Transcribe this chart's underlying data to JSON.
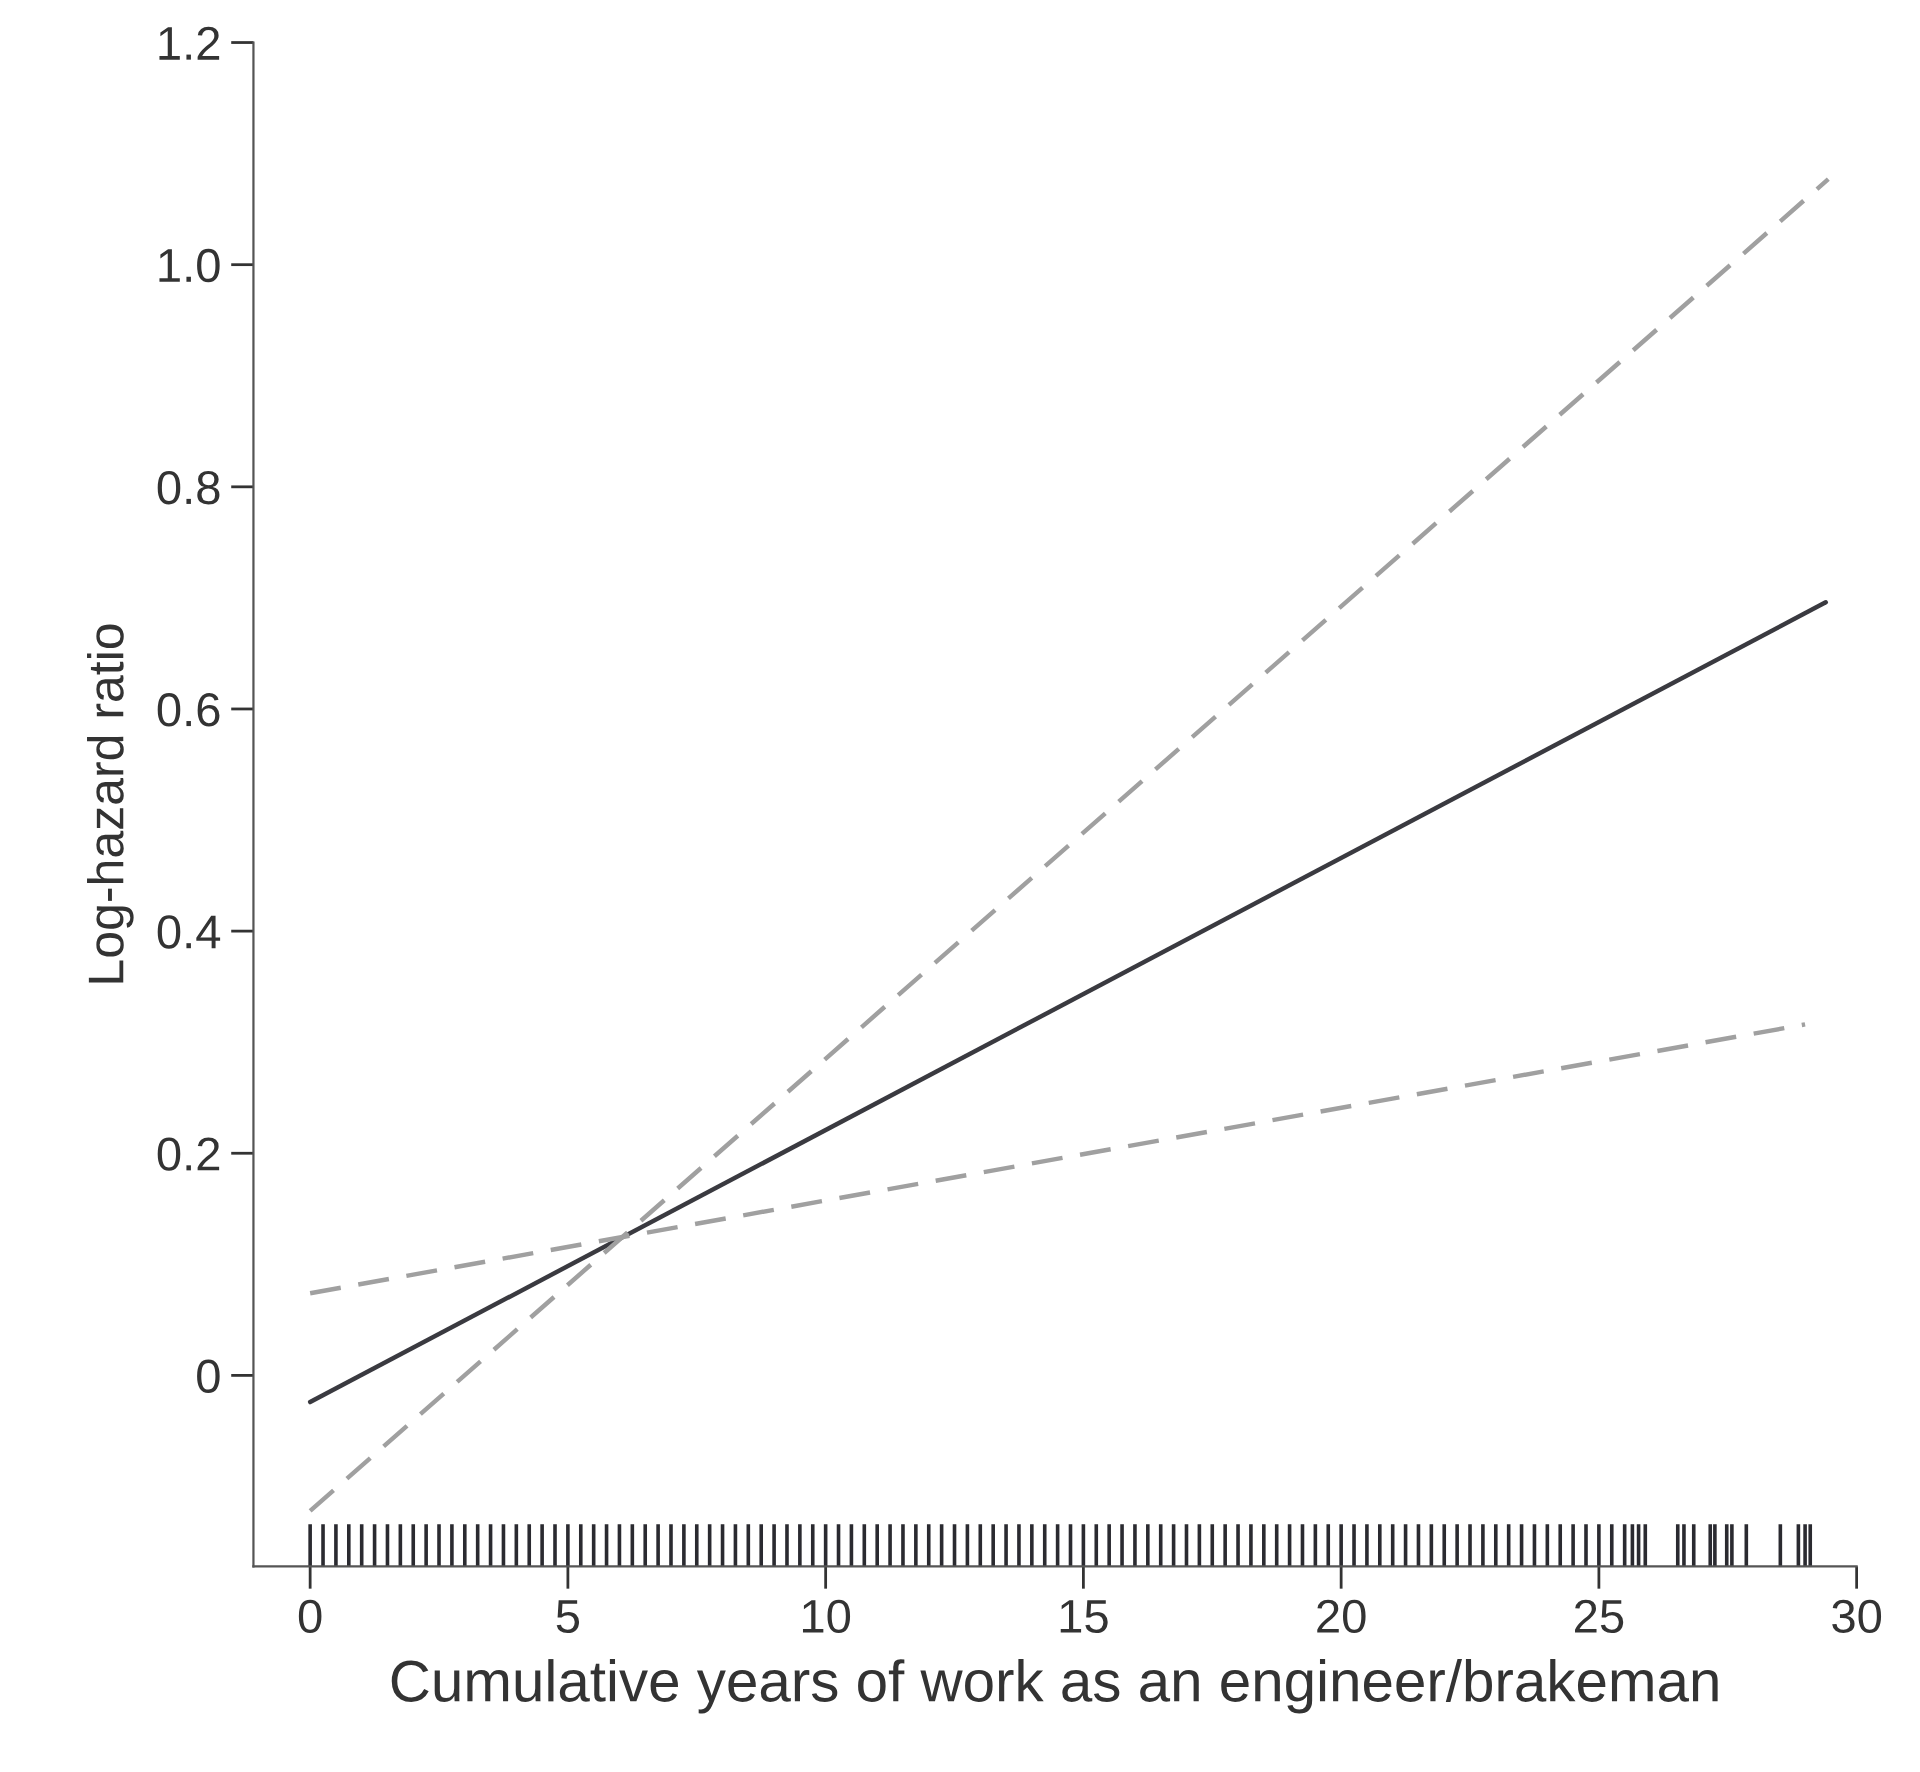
{
  "chart_data": {
    "type": "line",
    "xlabel": "Cumulative years of work as an engineer/brakeman",
    "ylabel": "Log-hazard ratio",
    "xlim": [
      -1.1,
      30
    ],
    "xticks": [
      0,
      5,
      10,
      15,
      20,
      25,
      30
    ],
    "ylim": [
      -0.172,
      1.2
    ],
    "yticks": [
      {
        "value": 0,
        "label": "0"
      },
      0.2,
      0.4,
      0.6,
      0.8,
      {
        "value": 1.0,
        "label": "1.0"
      },
      1.2
    ],
    "grid": false,
    "legend": false,
    "marker": "none",
    "series": [
      {
        "type": "line",
        "line_style": "solid",
        "color": "#3a3a40",
        "x": [
          0,
          29.4
        ],
        "values": [
          -0.024,
          0.696
        ]
      },
      {
        "line_style": "dashed",
        "color": "#a0a0a0",
        "x": [
          0,
          29.45
        ],
        "values": [
          -0.122,
          1.077
        ]
      },
      {
        "line_style": "dashed",
        "color": "#a0a0a0",
        "x": [
          0,
          29.0
        ],
        "values": [
          0.074,
          0.316
        ]
      },
      {
        "type": "bar",
        "color": "#2a2a30",
        "base": [
          -0.172,
          -0.172,
          -0.172,
          -0.172,
          -0.172,
          -0.172,
          -0.172,
          -0.172,
          -0.172,
          -0.172,
          -0.172,
          -0.172,
          -0.172,
          -0.172,
          -0.172,
          -0.172,
          -0.172,
          -0.172,
          -0.172,
          -0.172,
          -0.172,
          -0.172,
          -0.172,
          -0.172,
          -0.172,
          -0.172,
          -0.172,
          -0.172,
          -0.172,
          -0.172,
          -0.172,
          -0.172,
          -0.172,
          -0.172,
          -0.172,
          -0.172,
          -0.172,
          -0.172,
          -0.172,
          -0.172,
          -0.172,
          -0.172,
          -0.172,
          -0.172,
          -0.172,
          -0.172,
          -0.172,
          -0.172,
          -0.172,
          -0.172,
          -0.172,
          -0.172,
          -0.172,
          -0.172,
          -0.172,
          -0.172,
          -0.172,
          -0.172,
          -0.172,
          -0.172,
          -0.172,
          -0.172,
          -0.172,
          -0.172,
          -0.172,
          -0.172,
          -0.172,
          -0.172,
          -0.172,
          -0.172,
          -0.172,
          -0.172,
          -0.172,
          -0.172,
          -0.172,
          -0.172,
          -0.172,
          -0.172,
          -0.172,
          -0.172,
          -0.172,
          -0.172,
          -0.172,
          -0.172,
          -0.172,
          -0.172,
          -0.172,
          -0.172,
          -0.172,
          -0.172,
          -0.172,
          -0.172,
          -0.172,
          -0.172,
          -0.172,
          -0.172,
          -0.172,
          -0.172,
          -0.172,
          -0.172,
          -0.172,
          -0.172,
          -0.172,
          -0.172,
          -0.172,
          -0.172,
          -0.172,
          -0.172,
          -0.172,
          -0.172,
          -0.172,
          -0.172,
          -0.172,
          -0.172,
          -0.172,
          -0.172,
          -0.172,
          -0.172
        ],
        "x": [
          0,
          0.25,
          0.5,
          0.75,
          1,
          1.25,
          1.5,
          1.75,
          2,
          2.25,
          2.5,
          2.75,
          3,
          3.25,
          3.5,
          3.75,
          4,
          4.25,
          4.5,
          4.75,
          5,
          5.25,
          5.5,
          5.75,
          6,
          6.25,
          6.5,
          6.75,
          7,
          7.25,
          7.5,
          7.75,
          8,
          8.25,
          8.5,
          8.75,
          9,
          9.25,
          9.5,
          9.75,
          10,
          10.25,
          10.5,
          10.75,
          11,
          11.25,
          11.5,
          11.75,
          12,
          12.25,
          12.5,
          12.75,
          13,
          13.25,
          13.5,
          13.75,
          14,
          14.25,
          14.5,
          14.75,
          15,
          15.25,
          15.5,
          15.75,
          16,
          16.25,
          16.5,
          16.75,
          17,
          17.25,
          17.5,
          17.75,
          18,
          18.25,
          18.5,
          18.75,
          19,
          19.25,
          19.5,
          19.75,
          20,
          20.25,
          20.5,
          20.75,
          21,
          21.25,
          21.5,
          21.75,
          22,
          22.25,
          22.5,
          22.75,
          23,
          23.25,
          23.5,
          23.75,
          24,
          24.25,
          24.5,
          24.75,
          25,
          25.25,
          25.5,
          25.65,
          25.77,
          25.9,
          26.53,
          26.65,
          26.84,
          27.16,
          27.25,
          27.48,
          27.58,
          27.86,
          28.52,
          28.87,
          29.0,
          29.1
        ],
        "values": [
          0.038,
          0.038,
          0.038,
          0.038,
          0.038,
          0.038,
          0.038,
          0.038,
          0.038,
          0.038,
          0.038,
          0.038,
          0.038,
          0.038,
          0.038,
          0.038,
          0.038,
          0.038,
          0.038,
          0.038,
          0.038,
          0.038,
          0.038,
          0.038,
          0.038,
          0.038,
          0.038,
          0.038,
          0.038,
          0.038,
          0.038,
          0.038,
          0.038,
          0.038,
          0.038,
          0.038,
          0.038,
          0.038,
          0.038,
          0.038,
          0.038,
          0.038,
          0.038,
          0.038,
          0.038,
          0.038,
          0.038,
          0.038,
          0.038,
          0.038,
          0.038,
          0.038,
          0.038,
          0.038,
          0.038,
          0.038,
          0.038,
          0.038,
          0.038,
          0.038,
          0.038,
          0.038,
          0.038,
          0.038,
          0.038,
          0.038,
          0.038,
          0.038,
          0.038,
          0.038,
          0.038,
          0.038,
          0.038,
          0.038,
          0.038,
          0.038,
          0.038,
          0.038,
          0.038,
          0.038,
          0.038,
          0.038,
          0.038,
          0.038,
          0.038,
          0.038,
          0.038,
          0.038,
          0.038,
          0.038,
          0.038,
          0.038,
          0.038,
          0.038,
          0.038,
          0.038,
          0.038,
          0.038,
          0.038,
          0.038,
          0.038,
          0.038,
          0.038,
          0.038,
          0.038,
          0.038,
          0.038,
          0.038,
          0.038,
          0.038,
          0.038,
          0.038,
          0.038,
          0.038,
          0.038,
          0.038,
          0.038,
          0.038
        ]
      }
    ]
  }
}
